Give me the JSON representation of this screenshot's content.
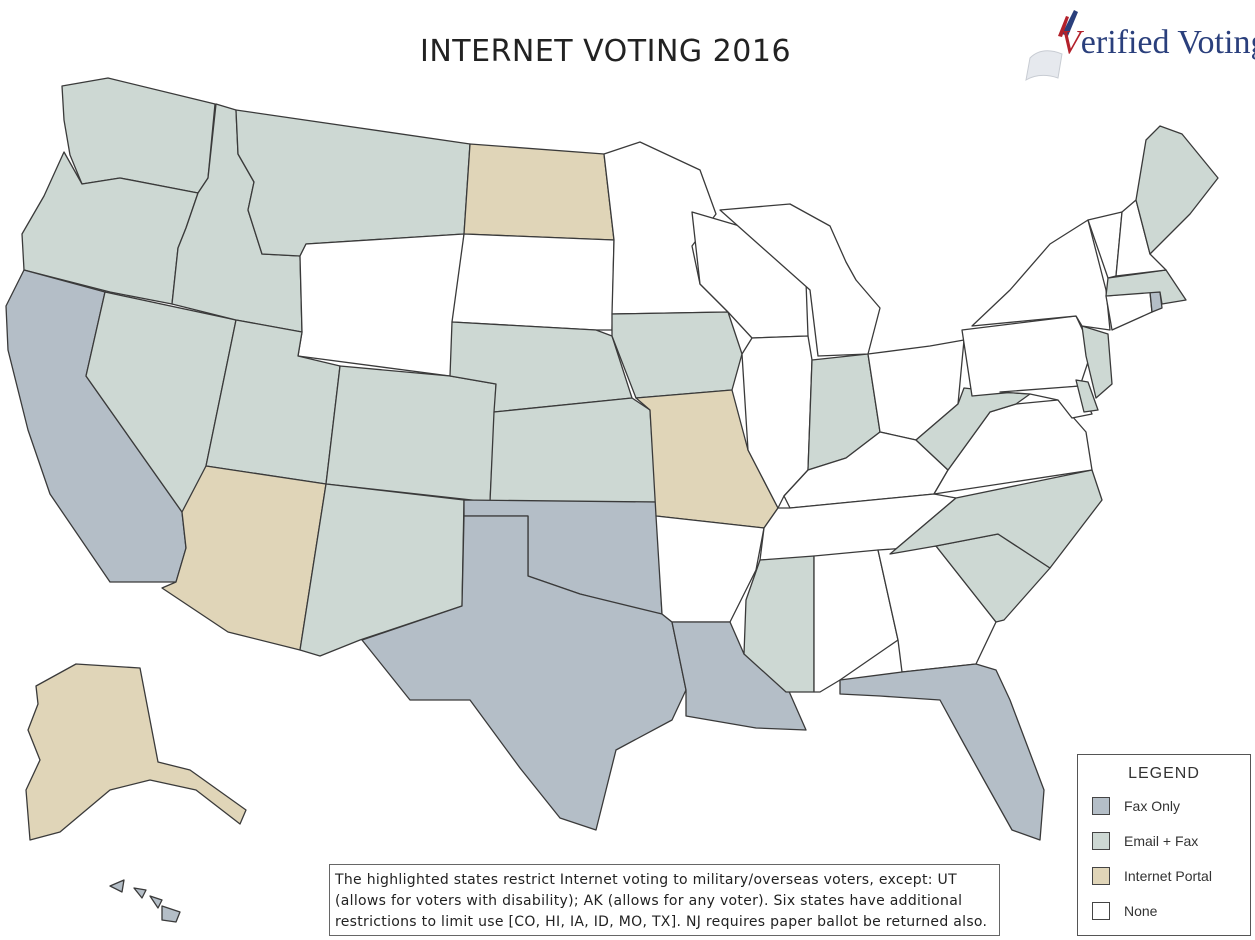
{
  "title": "INTERNET VOTING 2016",
  "logo": {
    "initial": "V",
    "rest": "erified Voting"
  },
  "colors": {
    "fax_only": "#b4bec7",
    "email_fax": "#cdd8d3",
    "internet_portal": "#e0d5b8",
    "none": "#ffffff",
    "border": "#3a3a3a"
  },
  "legend": {
    "title": "LEGEND",
    "items": [
      {
        "label": "Fax Only",
        "category": "fax_only"
      },
      {
        "label": "Email + Fax",
        "category": "email_fax"
      },
      {
        "label": "Internet Portal",
        "category": "internet_portal"
      },
      {
        "label": "None",
        "category": "none"
      }
    ]
  },
  "states": {
    "WA": "email_fax",
    "OR": "email_fax",
    "CA": "fax_only",
    "NV": "email_fax",
    "ID": "email_fax",
    "MT": "email_fax",
    "WY": "none",
    "UT": "email_fax",
    "AZ": "internet_portal",
    "CO": "email_fax",
    "NM": "email_fax",
    "ND": "internet_portal",
    "SD": "none",
    "NE": "email_fax",
    "KS": "email_fax",
    "OK": "fax_only",
    "TX": "fax_only",
    "MN": "none",
    "IA": "email_fax",
    "MO": "internet_portal",
    "AR": "none",
    "LA": "fax_only",
    "WI": "none",
    "IL": "none",
    "MI": "none",
    "IN": "email_fax",
    "OH": "none",
    "KY": "none",
    "TN": "none",
    "MS": "email_fax",
    "AL": "none",
    "GA": "none",
    "FL": "fax_only",
    "SC": "email_fax",
    "NC": "email_fax",
    "VA": "none",
    "WV": "email_fax",
    "PA": "none",
    "NY": "none",
    "NJ": "email_fax",
    "DE": "email_fax",
    "MD": "none",
    "VT": "none",
    "NH": "none",
    "ME": "email_fax",
    "MA": "email_fax",
    "CT": "none",
    "RI": "fax_only",
    "AK": "internet_portal",
    "HI": "fax_only"
  },
  "note": "The highlighted states restrict Internet voting to military/overseas voters, except: UT (allows for voters with disability); AK (allows for any voter). Six states have additional restrictions to limit use [CO, HI, IA, ID, MO, TX]. NJ requires paper ballot be returned also."
}
